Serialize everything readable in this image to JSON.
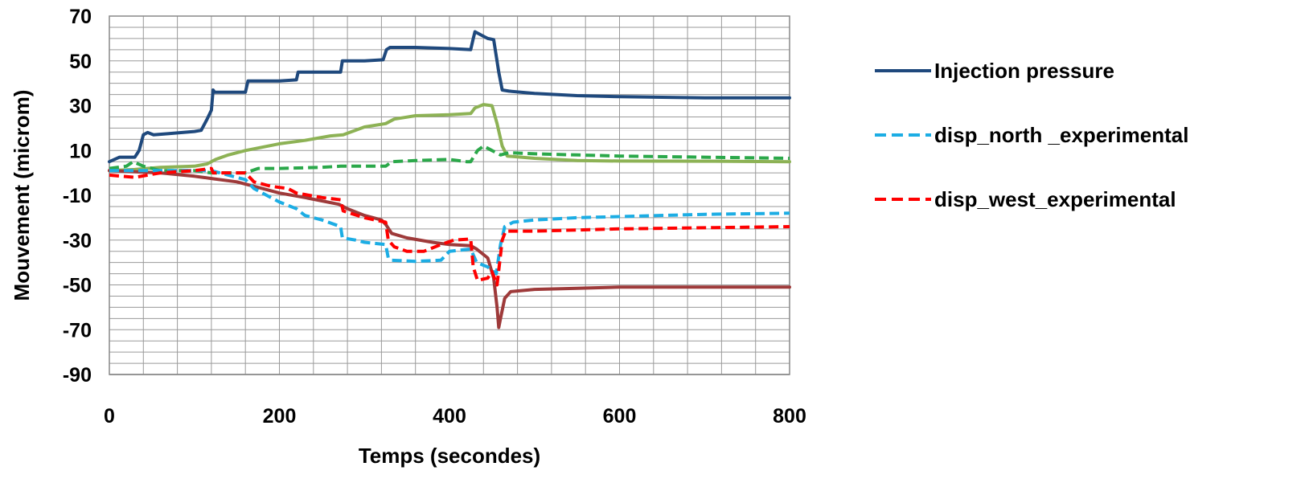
{
  "chart_data": {
    "type": "line",
    "xlabel": "Temps (secondes)",
    "ylabel": "Mouvement (microm)",
    "xlim": [
      0,
      800
    ],
    "ylim": [
      -90,
      70
    ],
    "x_ticks": [
      0,
      200,
      400,
      600,
      800
    ],
    "y_ticks": [
      70,
      50,
      30,
      10,
      -10,
      -30,
      -50,
      -70,
      -90
    ],
    "grid": true,
    "legend_position": "right",
    "series": [
      {
        "name": "Injection pressure",
        "color": "#1F497D",
        "dash": "solid",
        "in_legend": true,
        "points": [
          [
            0,
            5
          ],
          [
            12,
            7
          ],
          [
            30,
            7
          ],
          [
            35,
            10
          ],
          [
            40,
            17
          ],
          [
            45,
            18
          ],
          [
            52,
            17
          ],
          [
            70,
            17.5
          ],
          [
            100,
            18.5
          ],
          [
            108,
            19
          ],
          [
            115,
            24
          ],
          [
            120,
            28
          ],
          [
            122,
            37
          ],
          [
            124,
            36
          ],
          [
            140,
            36
          ],
          [
            160,
            36
          ],
          [
            163,
            41
          ],
          [
            180,
            41
          ],
          [
            200,
            41
          ],
          [
            220,
            41.5
          ],
          [
            222,
            45
          ],
          [
            250,
            45
          ],
          [
            272,
            45
          ],
          [
            274,
            50
          ],
          [
            300,
            50
          ],
          [
            322,
            50.5
          ],
          [
            326,
            55
          ],
          [
            330,
            56
          ],
          [
            360,
            56
          ],
          [
            400,
            55.5
          ],
          [
            425,
            55
          ],
          [
            428,
            60
          ],
          [
            430,
            63
          ],
          [
            440,
            61
          ],
          [
            445,
            60
          ],
          [
            452,
            59.5
          ],
          [
            458,
            45
          ],
          [
            462,
            37
          ],
          [
            470,
            36.5
          ],
          [
            500,
            35.5
          ],
          [
            550,
            34.5
          ],
          [
            600,
            34
          ],
          [
            700,
            33.5
          ],
          [
            800,
            33.5
          ]
        ]
      },
      {
        "name": "disp_north _experimental",
        "color": "#1CADE4",
        "dash": "dashed",
        "in_legend": true,
        "points": [
          [
            0,
            1
          ],
          [
            50,
            1
          ],
          [
            100,
            1
          ],
          [
            120,
            1
          ],
          [
            140,
            -1
          ],
          [
            160,
            -3
          ],
          [
            170,
            -7
          ],
          [
            200,
            -13
          ],
          [
            220,
            -16
          ],
          [
            230,
            -19
          ],
          [
            250,
            -21
          ],
          [
            272,
            -24
          ],
          [
            274,
            -29
          ],
          [
            290,
            -30
          ],
          [
            300,
            -31
          ],
          [
            325,
            -32
          ],
          [
            328,
            -38
          ],
          [
            332,
            -39
          ],
          [
            360,
            -39.5
          ],
          [
            390,
            -39
          ],
          [
            400,
            -35
          ],
          [
            425,
            -34
          ],
          [
            432,
            -40
          ],
          [
            445,
            -42
          ],
          [
            455,
            -45
          ],
          [
            460,
            -32
          ],
          [
            465,
            -24
          ],
          [
            475,
            -22
          ],
          [
            500,
            -21
          ],
          [
            550,
            -20
          ],
          [
            600,
            -19.5
          ],
          [
            700,
            -18.5
          ],
          [
            800,
            -18
          ]
        ]
      },
      {
        "name": "disp_west_experimental",
        "color": "#FF0000",
        "dash": "dashed",
        "in_legend": true,
        "points": [
          [
            0,
            -1
          ],
          [
            30,
            -2
          ],
          [
            60,
            0
          ],
          [
            100,
            1
          ],
          [
            120,
            2
          ],
          [
            122,
            0
          ],
          [
            160,
            0
          ],
          [
            170,
            -4
          ],
          [
            190,
            -6
          ],
          [
            210,
            -7
          ],
          [
            220,
            -9
          ],
          [
            250,
            -11
          ],
          [
            272,
            -12
          ],
          [
            275,
            -17
          ],
          [
            300,
            -20
          ],
          [
            325,
            -22
          ],
          [
            328,
            -30
          ],
          [
            335,
            -33
          ],
          [
            350,
            -35
          ],
          [
            370,
            -35
          ],
          [
            390,
            -32
          ],
          [
            405,
            -30
          ],
          [
            425,
            -29.5
          ],
          [
            428,
            -42
          ],
          [
            433,
            -48
          ],
          [
            445,
            -47
          ],
          [
            450,
            -44
          ],
          [
            456,
            -50
          ],
          [
            462,
            -30
          ],
          [
            466,
            -26
          ],
          [
            500,
            -26
          ],
          [
            550,
            -25.5
          ],
          [
            600,
            -25
          ],
          [
            700,
            -24.5
          ],
          [
            800,
            -24
          ]
        ]
      },
      {
        "name": "Green dashed series",
        "color": "#2BA84A",
        "dash": "dashed",
        "in_legend": false,
        "points": [
          [
            0,
            2
          ],
          [
            20,
            3
          ],
          [
            28,
            5
          ],
          [
            40,
            3
          ],
          [
            60,
            1
          ],
          [
            100,
            1
          ],
          [
            120,
            0
          ],
          [
            140,
            0
          ],
          [
            160,
            0
          ],
          [
            175,
            2
          ],
          [
            200,
            2
          ],
          [
            250,
            2.5
          ],
          [
            272,
            3
          ],
          [
            300,
            3
          ],
          [
            325,
            3
          ],
          [
            332,
            5
          ],
          [
            360,
            5.5
          ],
          [
            400,
            6
          ],
          [
            420,
            5
          ],
          [
            425,
            5
          ],
          [
            433,
            10
          ],
          [
            440,
            12
          ],
          [
            450,
            10
          ],
          [
            460,
            8
          ],
          [
            470,
            9
          ],
          [
            500,
            8.5
          ],
          [
            550,
            8
          ],
          [
            600,
            7.5
          ],
          [
            700,
            7
          ],
          [
            800,
            6.5
          ]
        ]
      },
      {
        "name": "Light green solid series",
        "color": "#8DB255",
        "dash": "solid",
        "in_legend": false,
        "points": [
          [
            0,
            1
          ],
          [
            30,
            1.5
          ],
          [
            60,
            2.5
          ],
          [
            100,
            3
          ],
          [
            115,
            4
          ],
          [
            125,
            6
          ],
          [
            140,
            8
          ],
          [
            160,
            10
          ],
          [
            200,
            13
          ],
          [
            230,
            14.5
          ],
          [
            260,
            16.5
          ],
          [
            275,
            17
          ],
          [
            300,
            20.5
          ],
          [
            325,
            22
          ],
          [
            335,
            24
          ],
          [
            360,
            25.5
          ],
          [
            400,
            26
          ],
          [
            425,
            26.5
          ],
          [
            430,
            29
          ],
          [
            440,
            30.5
          ],
          [
            450,
            30
          ],
          [
            456,
            22
          ],
          [
            462,
            12
          ],
          [
            468,
            7.5
          ],
          [
            500,
            6.5
          ],
          [
            550,
            5.5
          ],
          [
            600,
            5.3
          ],
          [
            700,
            5.2
          ],
          [
            800,
            5
          ]
        ]
      },
      {
        "name": "Dark red solid series",
        "color": "#9E3A3A",
        "dash": "solid",
        "in_legend": false,
        "points": [
          [
            0,
            1
          ],
          [
            30,
            0.5
          ],
          [
            60,
            0
          ],
          [
            100,
            -1.5
          ],
          [
            120,
            -2.5
          ],
          [
            150,
            -4
          ],
          [
            180,
            -7
          ],
          [
            200,
            -9
          ],
          [
            230,
            -11
          ],
          [
            270,
            -14
          ],
          [
            280,
            -16
          ],
          [
            300,
            -19
          ],
          [
            320,
            -21
          ],
          [
            325,
            -23
          ],
          [
            332,
            -27
          ],
          [
            350,
            -29
          ],
          [
            380,
            -31
          ],
          [
            400,
            -32
          ],
          [
            425,
            -32.5
          ],
          [
            432,
            -34
          ],
          [
            445,
            -38
          ],
          [
            452,
            -47
          ],
          [
            456,
            -60
          ],
          [
            458,
            -69
          ],
          [
            460,
            -65
          ],
          [
            465,
            -56
          ],
          [
            472,
            -53
          ],
          [
            500,
            -52
          ],
          [
            550,
            -51.5
          ],
          [
            600,
            -51
          ],
          [
            700,
            -51
          ],
          [
            800,
            -51
          ]
        ]
      }
    ]
  }
}
